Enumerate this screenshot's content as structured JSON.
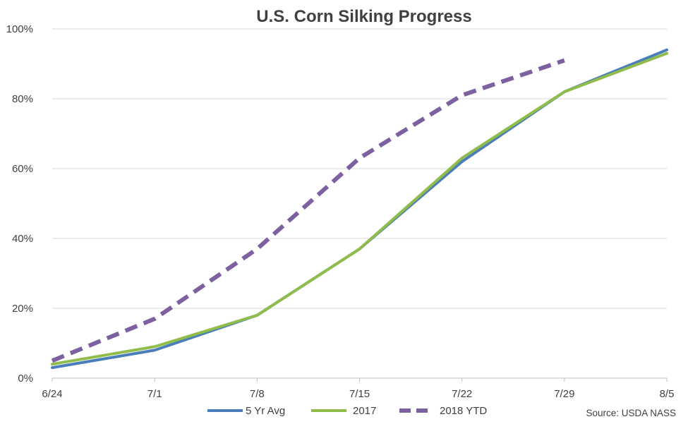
{
  "chart_data": {
    "type": "line",
    "title": "U.S. Corn Silking Progress",
    "xlabel": "",
    "ylabel": "",
    "categories": [
      "6/24",
      "7/1",
      "7/8",
      "7/15",
      "7/22",
      "7/29",
      "8/5"
    ],
    "y_ticks": [
      "0%",
      "20%",
      "40%",
      "60%",
      "80%",
      "100%"
    ],
    "ylim": [
      0,
      100
    ],
    "grid": true,
    "legend_position": "bottom",
    "source": "Source: USDA NASS",
    "series": [
      {
        "name": "5 Yr Avg",
        "values": [
          3,
          8,
          18,
          37,
          62,
          82,
          94
        ],
        "color": "#4a7ebb",
        "dash": false
      },
      {
        "name": "2017",
        "values": [
          4,
          9,
          18,
          37,
          63,
          82,
          93
        ],
        "color": "#8fbc4a",
        "dash": false
      },
      {
        "name": "2018 YTD",
        "values": [
          5,
          17,
          37,
          63,
          81,
          91,
          null
        ],
        "color": "#7d60a0",
        "dash": true
      }
    ]
  }
}
